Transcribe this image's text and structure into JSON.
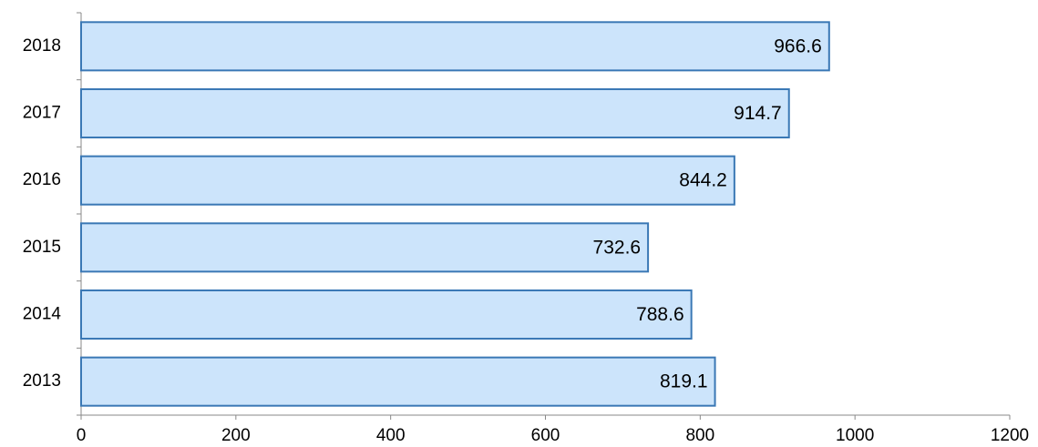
{
  "chart_data": {
    "type": "barh",
    "categories": [
      "2013",
      "2014",
      "2015",
      "2016",
      "2017",
      "2018"
    ],
    "values": [
      819.1,
      788.6,
      732.6,
      844.2,
      914.7,
      966.6
    ],
    "color": "#cce4fb",
    "edge_color": "#3a78b5",
    "xlim": [
      0,
      1200
    ],
    "xticks": [
      0,
      200,
      400,
      600,
      800,
      1000,
      1200
    ],
    "grid": false
  }
}
